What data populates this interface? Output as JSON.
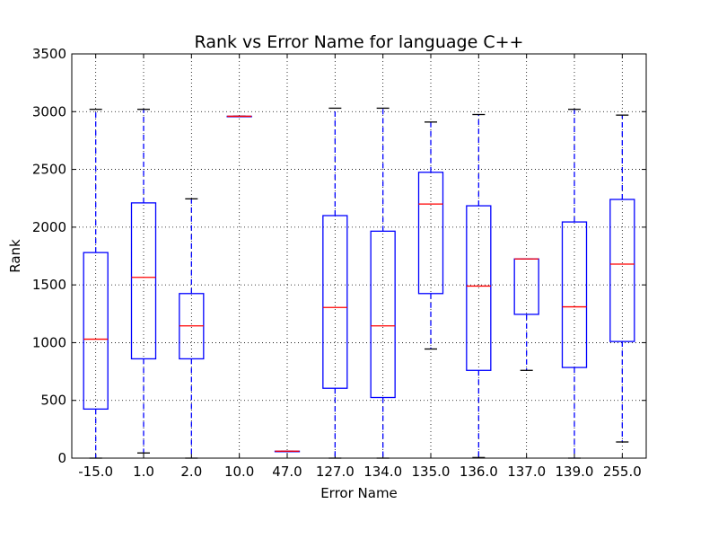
{
  "chart_data": {
    "type": "box",
    "title": "Rank vs Error Name for language C++",
    "xlabel": "Error Name",
    "ylabel": "Rank",
    "ylim": [
      0,
      3500
    ],
    "yticks": [
      0,
      500,
      1000,
      1500,
      2000,
      2500,
      3000,
      3500
    ],
    "grid": true,
    "categories": [
      "-15.0",
      "1.0",
      "2.0",
      "10.0",
      "47.0",
      "127.0",
      "134.0",
      "135.0",
      "136.0",
      "137.0",
      "139.0",
      "255.0"
    ],
    "boxes": [
      {
        "category": "-15.0",
        "whisker_low": 0,
        "q1": 425,
        "median": 1030,
        "q3": 1780,
        "whisker_high": 3020
      },
      {
        "category": "1.0",
        "whisker_low": 45,
        "q1": 860,
        "median": 1565,
        "q3": 2210,
        "whisker_high": 3020
      },
      {
        "category": "2.0",
        "whisker_low": 0,
        "q1": 860,
        "median": 1145,
        "q3": 1425,
        "whisker_high": 2245
      },
      {
        "category": "10.0",
        "whisker_low": 2960,
        "q1": 2960,
        "median": 2960,
        "q3": 2960,
        "whisker_high": 2960
      },
      {
        "category": "47.0",
        "whisker_low": 60,
        "q1": 60,
        "median": 60,
        "q3": 60,
        "whisker_high": 60
      },
      {
        "category": "127.0",
        "whisker_low": 0,
        "q1": 605,
        "median": 1305,
        "q3": 2100,
        "whisker_high": 3030
      },
      {
        "category": "134.0",
        "whisker_low": 0,
        "q1": 525,
        "median": 1145,
        "q3": 1965,
        "whisker_high": 3030
      },
      {
        "category": "135.0",
        "whisker_low": 945,
        "q1": 1425,
        "median": 2200,
        "q3": 2475,
        "whisker_high": 2910
      },
      {
        "category": "136.0",
        "whisker_low": 5,
        "q1": 760,
        "median": 1490,
        "q3": 2185,
        "whisker_high": 2975
      },
      {
        "category": "137.0",
        "whisker_low": 760,
        "q1": 1245,
        "median": 1725,
        "q3": 1725,
        "whisker_high": 1725
      },
      {
        "category": "139.0",
        "whisker_low": 0,
        "q1": 785,
        "median": 1310,
        "q3": 2045,
        "whisker_high": 3020
      },
      {
        "category": "255.0",
        "whisker_low": 140,
        "q1": 1010,
        "median": 1680,
        "q3": 2240,
        "whisker_high": 2970
      }
    ],
    "colors": {
      "box": "#0000ff",
      "median": "#ff0000",
      "cap": "#000000",
      "grid": "#000000"
    }
  }
}
